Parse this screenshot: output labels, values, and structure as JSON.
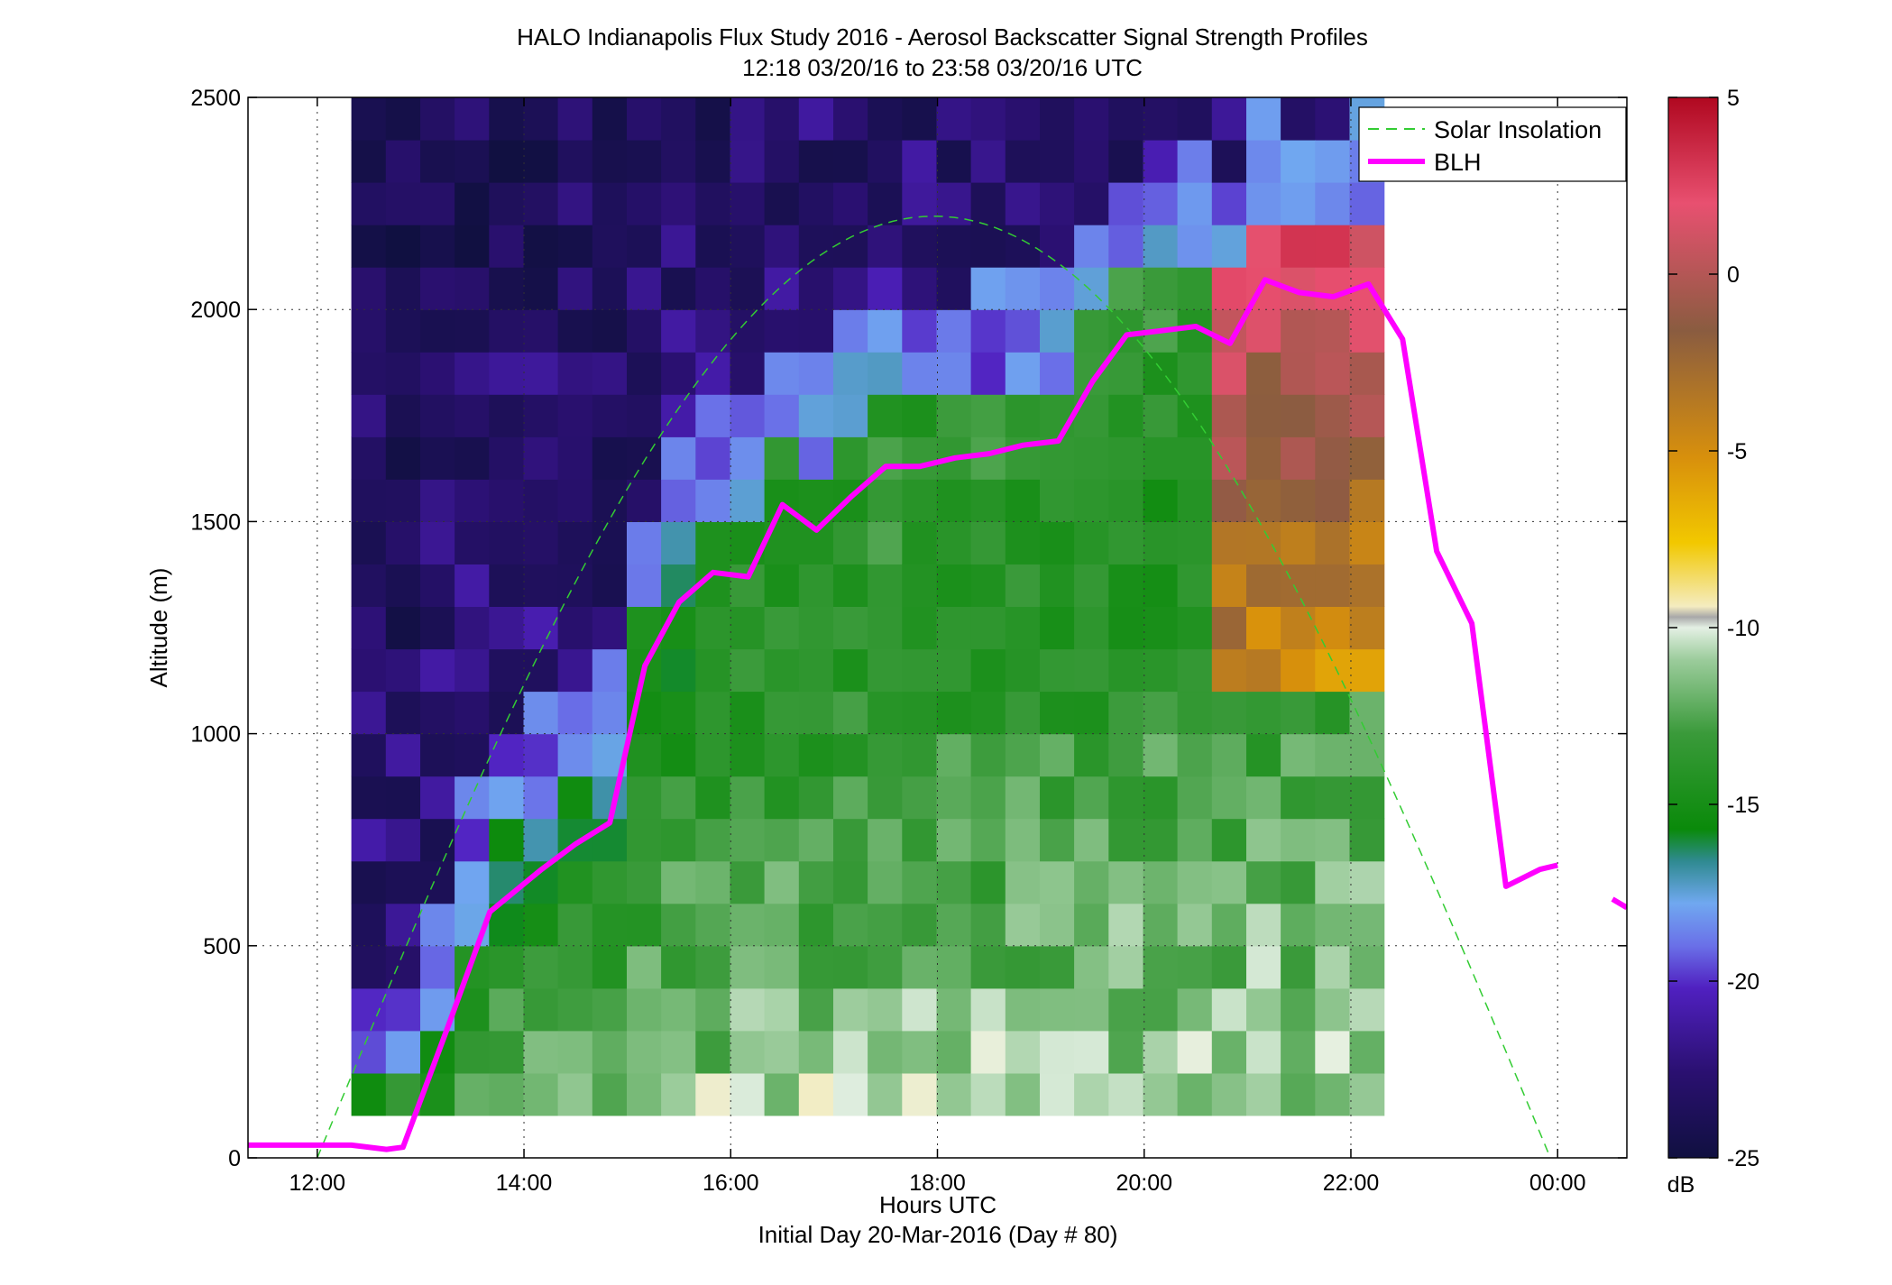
{
  "chart_data": {
    "type": "heatmap",
    "title": "HALO Indianapolis Flux Study 2016 - Aerosol Backscatter Signal Strength Profiles",
    "subtitle": "12:18 03/20/16 to 23:58 03/20/16  UTC",
    "xlabel": "Hours UTC",
    "xlabel2": "Initial Day 20-Mar-2016 (Day # 80)",
    "ylabel": "Altitude (m)",
    "xlim": [
      11.33,
      24.67
    ],
    "ylim": [
      0,
      2500
    ],
    "xticks": [
      12,
      14,
      16,
      18,
      20,
      22,
      24
    ],
    "xtick_labels": [
      "12:00",
      "14:00",
      "16:00",
      "18:00",
      "20:00",
      "22:00",
      "00:00"
    ],
    "yticks": [
      0,
      500,
      1000,
      1500,
      2000,
      2500
    ],
    "ytick_labels": [
      "0",
      "500",
      "1000",
      "1500",
      "2000",
      "2500"
    ],
    "grid": true,
    "legend": {
      "placement": "top-right",
      "entries": [
        {
          "label": "Solar Insolation",
          "color": "#33cc33",
          "style": "dashed"
        },
        {
          "label": "BLH",
          "color": "#ff00ff",
          "style": "solid"
        }
      ]
    },
    "colorbar": {
      "unit": "dB",
      "range": [
        -25,
        5
      ],
      "ticks": [
        5,
        0,
        -5,
        -10,
        -15,
        -20,
        -25
      ],
      "tick_labels": [
        "5",
        "0",
        "-5",
        "-10",
        "-15",
        "-20",
        "-25"
      ]
    },
    "heatmap": {
      "x_start": 12.33,
      "x_step": 0.333,
      "n_cols": 30,
      "y_start": 100,
      "y_step": 100,
      "n_rows": 24,
      "value_unit": "dB"
    },
    "series": [
      {
        "name": "BLH",
        "color": "#ff00ff",
        "x": [
          11.33,
          12.0,
          12.33,
          12.67,
          12.83,
          13.25,
          13.67,
          14.17,
          14.5,
          14.83,
          15.17,
          15.5,
          15.83,
          16.17,
          16.5,
          16.83,
          17.17,
          17.5,
          17.83,
          18.17,
          18.5,
          18.83,
          19.17,
          19.5,
          19.83,
          20.17,
          20.5,
          20.83,
          21.17,
          21.5,
          21.83,
          22.17,
          22.5,
          22.83,
          23.17,
          23.5,
          23.83,
          24.0
        ],
        "y": [
          30,
          30,
          30,
          20,
          25,
          300,
          580,
          680,
          740,
          790,
          1160,
          1310,
          1380,
          1370,
          1540,
          1480,
          1560,
          1630,
          1630,
          1650,
          1660,
          1680,
          1690,
          1830,
          1940,
          1950,
          1960,
          1920,
          2070,
          2040,
          2030,
          2060,
          1930,
          1430,
          1260,
          640,
          680,
          690
        ]
      },
      {
        "name": "BLH (gap segment)",
        "color": "#ff00ff",
        "x": [
          24.53,
          24.67
        ],
        "y": [
          610,
          590
        ]
      },
      {
        "name": "Solar Insolation",
        "color": "#33cc33",
        "x_range": [
          12.0,
          23.93
        ],
        "peak_x": 17.93,
        "peak_y": 2220
      }
    ]
  }
}
